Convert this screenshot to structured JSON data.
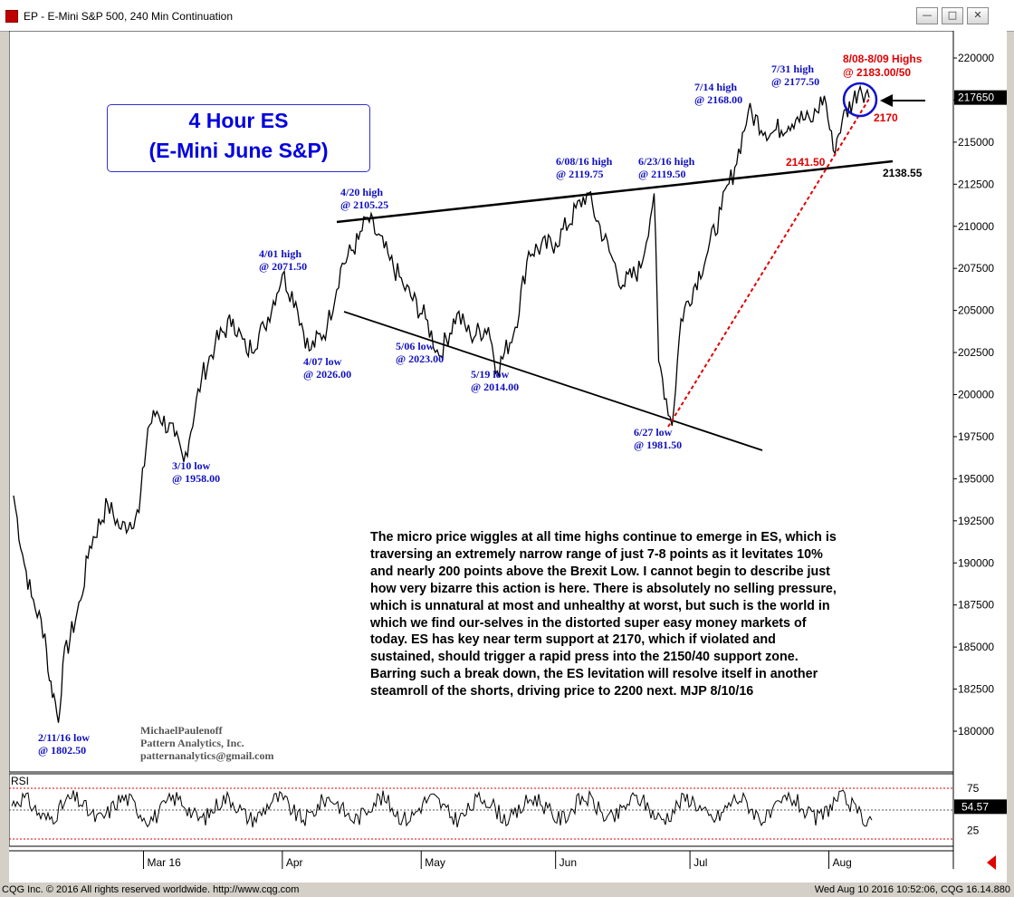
{
  "window": {
    "title": "EP - E-Mini S&P 500, 240 Min Continuation",
    "buttons": [
      "minimize",
      "maximize",
      "close"
    ]
  },
  "status": {
    "left": "CQG Inc. © 2016 All rights reserved worldwide. http://www.cqg.com",
    "right": "Wed Aug 10 2016 10:52:06, CQG 16.14.880"
  },
  "title_box": {
    "line1": "4 Hour ES",
    "line2": "(E-Mini June S&P)"
  },
  "commentary": "The micro price wiggles at all time highs continue to emerge in ES, which is traversing an extremely narrow range of just 7-8 points as it levitates 10% and nearly 200 points above the Brexit Low. I cannot begin to describe just how very bizarre this action is here. There is absolutely no selling pressure, which is unnatural at most and unhealthy at worst, but such is the world in which we find our-selves in the distorted super easy money markets of today. ES has key near term support at 2170, which if violated and sustained, should trigger a rapid press into the 2150/40 support zone. Barring such a break down, the ES levitation will resolve itself in another steamroll of the shorts, driving price to 2200 next.  MJP 8/10/16",
  "author": {
    "name": "MichaelPaulenoff",
    "company": "Pattern Analytics, Inc.",
    "email": "patternanalytics@gmail.com"
  },
  "colors": {
    "price": "#000000",
    "annotation_blue": "#1010c0",
    "annotation_red": "#e00000",
    "rsi_line": "#000000",
    "rsi_band": "#e00000"
  },
  "chart_data": {
    "type": "line",
    "title": "4 Hour ES (E-Mini June S&P)",
    "y_ticks": [
      "220000",
      "217500",
      "215000",
      "212500",
      "210000",
      "207500",
      "205000",
      "202500",
      "200000",
      "197500",
      "195000",
      "192500",
      "190000",
      "187500",
      "185000",
      "182500",
      "180000"
    ],
    "ylim": [
      1787,
      2207
    ],
    "last_price": "217650",
    "x_ticks": [
      "Mar 16",
      "Apr",
      "May",
      "Jun",
      "Jul",
      "Aug"
    ],
    "series": [
      {
        "points": [
          [
            "2016-02-01",
            1940
          ],
          [
            "2016-02-03",
            1905
          ],
          [
            "2016-02-05",
            1880
          ],
          [
            "2016-02-08",
            1858
          ],
          [
            "2016-02-09",
            1830
          ],
          [
            "2016-02-10",
            1822
          ],
          [
            "2016-02-11",
            1805
          ],
          [
            "2016-02-12",
            1840
          ],
          [
            "2016-02-16",
            1878
          ],
          [
            "2016-02-18",
            1910
          ],
          [
            "2016-02-22",
            1935
          ],
          [
            "2016-02-25",
            1920
          ],
          [
            "2016-02-29",
            1930
          ],
          [
            "2016-03-02",
            1980
          ],
          [
            "2016-03-04",
            1990
          ],
          [
            "2016-03-08",
            1975
          ],
          [
            "2016-03-10",
            1960
          ],
          [
            "2016-03-14",
            2010
          ],
          [
            "2016-03-17",
            2030
          ],
          [
            "2016-03-21",
            2045
          ],
          [
            "2016-03-24",
            2025
          ],
          [
            "2016-03-28",
            2040
          ],
          [
            "2016-04-01",
            2071.5
          ],
          [
            "2016-04-04",
            2055
          ],
          [
            "2016-04-07",
            2026
          ],
          [
            "2016-04-11",
            2040
          ],
          [
            "2016-04-14",
            2075
          ],
          [
            "2016-04-18",
            2092
          ],
          [
            "2016-04-20",
            2105.25
          ],
          [
            "2016-04-25",
            2080
          ],
          [
            "2016-04-28",
            2065
          ],
          [
            "2016-05-03",
            2045
          ],
          [
            "2016-05-06",
            2023
          ],
          [
            "2016-05-10",
            2048
          ],
          [
            "2016-05-13",
            2035
          ],
          [
            "2016-05-17",
            2040
          ],
          [
            "2016-05-19",
            2014
          ],
          [
            "2016-05-23",
            2040
          ],
          [
            "2016-05-26",
            2085
          ],
          [
            "2016-06-01",
            2090
          ],
          [
            "2016-06-08",
            2119.75
          ],
          [
            "2016-06-13",
            2085
          ],
          [
            "2016-06-16",
            2065
          ],
          [
            "2016-06-20",
            2075
          ],
          [
            "2016-06-23",
            2119.5
          ],
          [
            "2016-06-24",
            2020
          ],
          [
            "2016-06-27",
            1981.5
          ],
          [
            "2016-06-29",
            2045
          ],
          [
            "2016-07-05",
            2085
          ],
          [
            "2016-07-08",
            2110
          ],
          [
            "2016-07-11",
            2135
          ],
          [
            "2016-07-14",
            2168
          ],
          [
            "2016-07-19",
            2155
          ],
          [
            "2016-07-25",
            2165
          ],
          [
            "2016-07-28",
            2162
          ],
          [
            "2016-07-31",
            2177.5
          ],
          [
            "2016-08-02",
            2145
          ],
          [
            "2016-08-04",
            2163
          ],
          [
            "2016-08-08",
            2183
          ],
          [
            "2016-08-10",
            2176.5
          ]
        ]
      }
    ],
    "annotations": [
      {
        "text": "2/11/16 low",
        "value": "@ 1802.50"
      },
      {
        "text": "3/10 low",
        "value": "@ 1958.00"
      },
      {
        "text": "4/01 high",
        "value": "@ 2071.50"
      },
      {
        "text": "4/07 low",
        "value": "@ 2026.00"
      },
      {
        "text": "4/20 high",
        "value": "@ 2105.25"
      },
      {
        "text": "5/06 low",
        "value": "@ 2023.00"
      },
      {
        "text": "5/19 low",
        "value": "@ 2014.00"
      },
      {
        "text": "6/08/16 high",
        "value": "@ 2119.75"
      },
      {
        "text": "6/23/16 high",
        "value": "@ 2119.50"
      },
      {
        "text": "6/27 low",
        "value": "@ 1981.50"
      },
      {
        "text": "7/14 high",
        "value": "@ 2168.00"
      },
      {
        "text": "7/31 high",
        "value": "@ 2177.50"
      }
    ],
    "red_annotations": {
      "highs": "8/08-8/09 Highs",
      "highs_value": "@ 2183.00/50",
      "support1": "2170",
      "support2": "2141.50"
    },
    "level_label": "2138.55",
    "rsi": {
      "label": "RSI",
      "ticks": [
        "75",
        "25"
      ],
      "last": "54.57"
    }
  }
}
